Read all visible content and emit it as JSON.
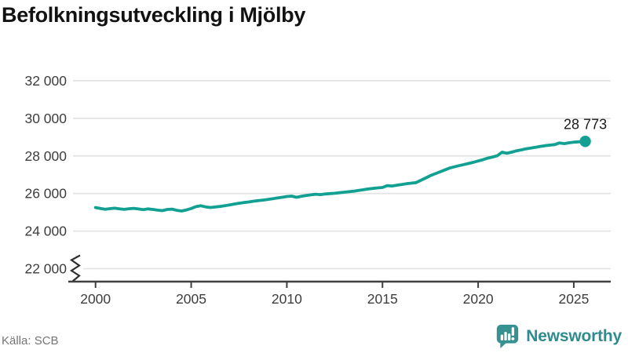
{
  "title": "Befolkningsutveckling i Mjölby",
  "source": "Källa: SCB",
  "branding": {
    "logo_text": "Newsworthy",
    "logo_icon": "bar-chart-speech-bubble-icon"
  },
  "colors": {
    "line": "#11a092",
    "marker": "#11a092",
    "grid": "#e4e4e4",
    "axis": "#3f3f3f",
    "tick_label": "#3d3d3d",
    "end_label": "#1a1a1a",
    "title": "#121212",
    "source": "#757575",
    "brand": "#2e8b8e",
    "logo_fill": "#379190"
  },
  "chart_data": {
    "type": "line",
    "title": "Befolkningsutveckling i Mjölby",
    "xlabel": "",
    "ylabel": "",
    "xlim": [
      2000,
      2025.6
    ],
    "ylim": [
      22000,
      32000
    ],
    "axis_break_at_bottom": true,
    "grid": "horizontal",
    "y_ticks": [
      22000,
      24000,
      26000,
      28000,
      30000,
      32000
    ],
    "y_tick_labels": [
      "22 000",
      "24 000",
      "26 000",
      "28 000",
      "30 000",
      "32 000"
    ],
    "x_ticks": [
      2000,
      2005,
      2010,
      2015,
      2020,
      2025
    ],
    "x_tick_labels": [
      "2000",
      "2005",
      "2010",
      "2015",
      "2020",
      "2025"
    ],
    "end_label": "28 773",
    "end_value": 28773,
    "series": [
      {
        "name": "Befolkning i Mjölby",
        "points": [
          [
            2000.0,
            25250
          ],
          [
            2000.25,
            25205
          ],
          [
            2000.5,
            25160
          ],
          [
            2000.75,
            25195
          ],
          [
            2001.0,
            25220
          ],
          [
            2001.25,
            25185
          ],
          [
            2001.5,
            25155
          ],
          [
            2001.75,
            25190
          ],
          [
            2002.0,
            25210
          ],
          [
            2002.25,
            25175
          ],
          [
            2002.5,
            25145
          ],
          [
            2002.75,
            25180
          ],
          [
            2003.0,
            25150
          ],
          [
            2003.25,
            25115
          ],
          [
            2003.5,
            25090
          ],
          [
            2003.75,
            25150
          ],
          [
            2004.0,
            25170
          ],
          [
            2004.25,
            25105
          ],
          [
            2004.5,
            25070
          ],
          [
            2004.75,
            25125
          ],
          [
            2005.0,
            25200
          ],
          [
            2005.25,
            25300
          ],
          [
            2005.5,
            25350
          ],
          [
            2005.75,
            25290
          ],
          [
            2006.0,
            25255
          ],
          [
            2006.25,
            25280
          ],
          [
            2006.5,
            25310
          ],
          [
            2006.75,
            25350
          ],
          [
            2007.0,
            25390
          ],
          [
            2007.25,
            25440
          ],
          [
            2007.5,
            25480
          ],
          [
            2007.75,
            25520
          ],
          [
            2008.0,
            25550
          ],
          [
            2008.25,
            25590
          ],
          [
            2008.5,
            25620
          ],
          [
            2008.75,
            25650
          ],
          [
            2009.0,
            25680
          ],
          [
            2009.25,
            25720
          ],
          [
            2009.5,
            25760
          ],
          [
            2009.75,
            25800
          ],
          [
            2010.0,
            25840
          ],
          [
            2010.25,
            25860
          ],
          [
            2010.5,
            25800
          ],
          [
            2010.75,
            25850
          ],
          [
            2011.0,
            25890
          ],
          [
            2011.25,
            25930
          ],
          [
            2011.5,
            25960
          ],
          [
            2011.75,
            25940
          ],
          [
            2012.0,
            25975
          ],
          [
            2012.25,
            25995
          ],
          [
            2012.5,
            26010
          ],
          [
            2012.75,
            26040
          ],
          [
            2013.0,
            26070
          ],
          [
            2013.25,
            26095
          ],
          [
            2013.5,
            26125
          ],
          [
            2013.75,
            26165
          ],
          [
            2014.0,
            26200
          ],
          [
            2014.25,
            26240
          ],
          [
            2014.5,
            26270
          ],
          [
            2014.75,
            26300
          ],
          [
            2015.0,
            26320
          ],
          [
            2015.25,
            26420
          ],
          [
            2015.5,
            26400
          ],
          [
            2015.75,
            26440
          ],
          [
            2016.0,
            26480
          ],
          [
            2016.25,
            26520
          ],
          [
            2016.5,
            26550
          ],
          [
            2016.75,
            26580
          ],
          [
            2017.0,
            26700
          ],
          [
            2017.25,
            26820
          ],
          [
            2017.5,
            26950
          ],
          [
            2017.75,
            27050
          ],
          [
            2018.0,
            27150
          ],
          [
            2018.25,
            27250
          ],
          [
            2018.5,
            27350
          ],
          [
            2018.75,
            27420
          ],
          [
            2019.0,
            27480
          ],
          [
            2019.25,
            27540
          ],
          [
            2019.5,
            27600
          ],
          [
            2019.75,
            27660
          ],
          [
            2020.0,
            27730
          ],
          [
            2020.25,
            27800
          ],
          [
            2020.5,
            27880
          ],
          [
            2020.75,
            27940
          ],
          [
            2021.0,
            28010
          ],
          [
            2021.25,
            28200
          ],
          [
            2021.5,
            28140
          ],
          [
            2021.75,
            28200
          ],
          [
            2022.0,
            28270
          ],
          [
            2022.25,
            28320
          ],
          [
            2022.5,
            28380
          ],
          [
            2022.75,
            28420
          ],
          [
            2023.0,
            28460
          ],
          [
            2023.25,
            28510
          ],
          [
            2023.5,
            28545
          ],
          [
            2023.75,
            28575
          ],
          [
            2024.0,
            28605
          ],
          [
            2024.25,
            28690
          ],
          [
            2024.5,
            28655
          ],
          [
            2024.75,
            28700
          ],
          [
            2025.0,
            28735
          ],
          [
            2025.25,
            28750
          ],
          [
            2025.6,
            28773
          ]
        ]
      }
    ]
  }
}
